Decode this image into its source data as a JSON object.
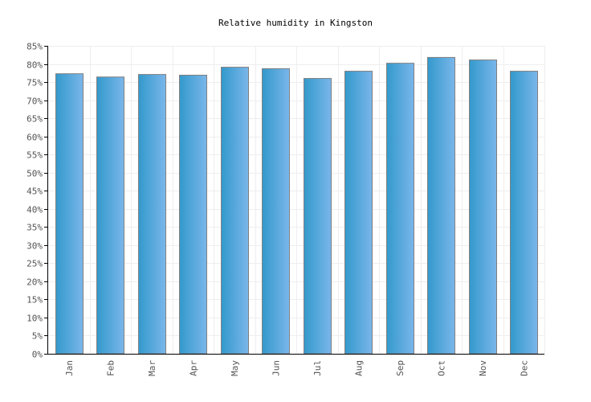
{
  "chart_data": {
    "type": "bar",
    "title": "Relative humidity in Kingston",
    "xlabel": "",
    "ylabel": "",
    "categories": [
      "Jan",
      "Feb",
      "Mar",
      "Apr",
      "May",
      "Jun",
      "Jul",
      "Aug",
      "Sep",
      "Oct",
      "Nov",
      "Dec"
    ],
    "values": [
      77.3,
      76.4,
      77.1,
      76.9,
      79.1,
      78.7,
      76.0,
      78.0,
      80.2,
      81.8,
      81.1,
      78.0
    ],
    "ylim": [
      0,
      85
    ],
    "ytick_step": 5,
    "ytick_suffix": "%",
    "grid": true,
    "legend": "none",
    "colors": {
      "bar_left": "#3399cc",
      "bar_right": "#7ab6ea",
      "bar_border": "#808080",
      "grid": "#eeeeee"
    }
  }
}
